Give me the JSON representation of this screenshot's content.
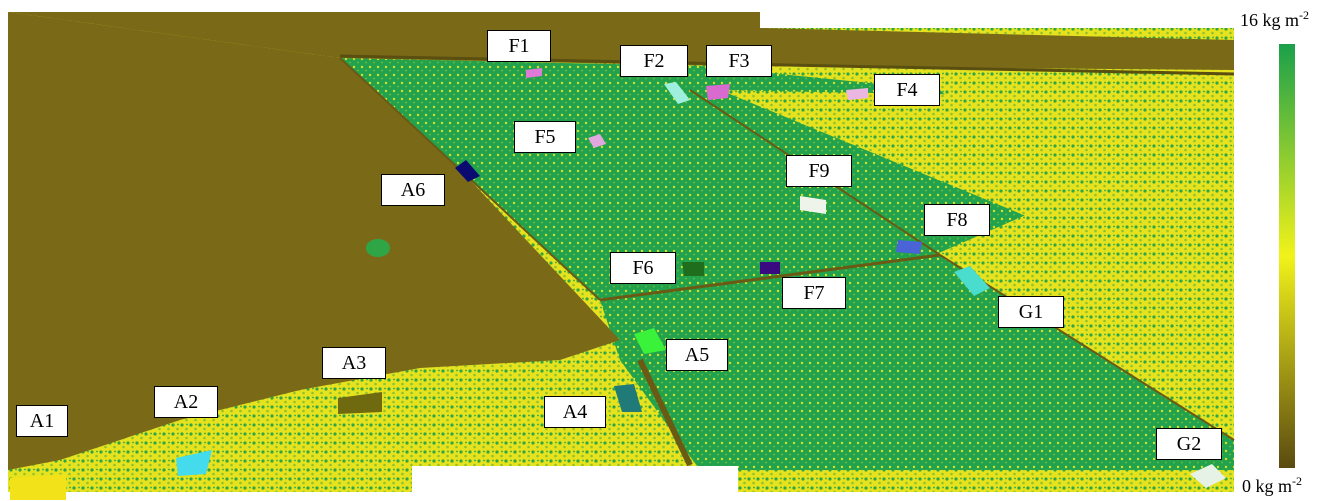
{
  "colorbar": {
    "max_value": "16 kg m",
    "max_exp": "-2",
    "min_value": "0 kg m",
    "min_exp": "-2",
    "colors": [
      "#1aa04a",
      "#f2f21a",
      "#5a4a10"
    ]
  },
  "plots": [
    {
      "id": "A1",
      "color": "#f2e21a"
    },
    {
      "id": "A2",
      "color": "#44dcec"
    },
    {
      "id": "A3",
      "color": "#6f6a10"
    },
    {
      "id": "A4",
      "color": "#1f7a78"
    },
    {
      "id": "A5",
      "color": "#3af23a"
    },
    {
      "id": "A6",
      "color": "#0a0a70"
    },
    {
      "id": "F1",
      "color": "#e07ad8"
    },
    {
      "id": "F2",
      "color": "#9ef0dc"
    },
    {
      "id": "F3",
      "color": "#d86ad0"
    },
    {
      "id": "F4",
      "color": "#ecb6e2"
    },
    {
      "id": "F5",
      "color": "#e2a6e0"
    },
    {
      "id": "F6",
      "color": "#1e6e1e"
    },
    {
      "id": "F7",
      "color": "#3a0a80"
    },
    {
      "id": "F8",
      "color": "#4a64d8"
    },
    {
      "id": "F9",
      "color": "#eef4ea"
    },
    {
      "id": "G1",
      "color": "#4adccc"
    },
    {
      "id": "G2",
      "color": "#e6f2e6"
    }
  ]
}
